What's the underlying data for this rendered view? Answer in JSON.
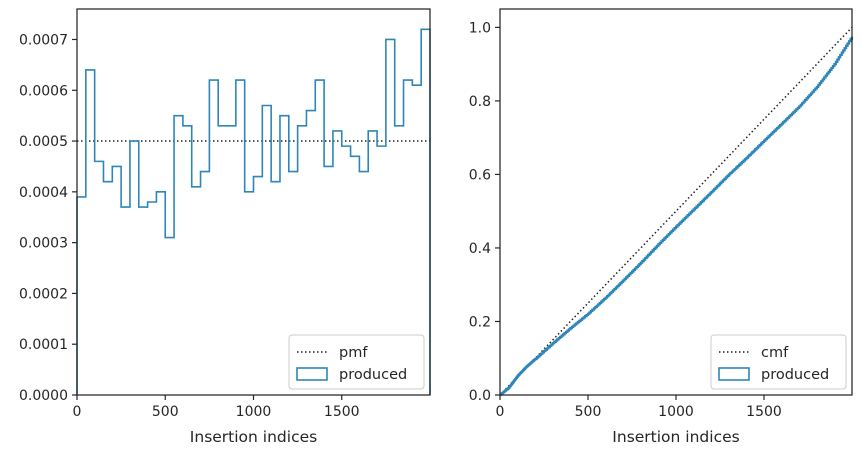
{
  "colors": {
    "series": "#2e86b8",
    "reference": "#222222",
    "axes": "#262626",
    "legend_frame": "#cccccc"
  },
  "chart_data": [
    {
      "type": "step",
      "xlabel": "Insertion indices",
      "ylabel": "",
      "xlim": [
        0,
        2000
      ],
      "ylim": [
        0,
        0.00076
      ],
      "xticks": [
        0,
        500,
        1000,
        1500
      ],
      "xtick_labels": [
        "0",
        "500",
        "1000",
        "1500"
      ],
      "yticks": [
        0,
        0.0001,
        0.0002,
        0.0003,
        0.0004,
        0.0005,
        0.0006,
        0.0007
      ],
      "ytick_labels": [
        "0.0000",
        "0.0001",
        "0.0002",
        "0.0003",
        "0.0004",
        "0.0005",
        "0.0006",
        "0.0007"
      ],
      "legend_position": "lower-right",
      "legend": [
        "pmf",
        "produced"
      ],
      "reference_line": {
        "name": "pmf",
        "value": 0.0005,
        "style": "dotted"
      },
      "bin_width": 50,
      "bin_start": 0,
      "series": [
        {
          "name": "produced",
          "values": [
            0.00039,
            0.00064,
            0.00046,
            0.00042,
            0.00045,
            0.00037,
            0.0005,
            0.00037,
            0.00038,
            0.0004,
            0.00031,
            0.00055,
            0.00053,
            0.00041,
            0.00044,
            0.00062,
            0.00053,
            0.00053,
            0.00062,
            0.0004,
            0.00043,
            0.00057,
            0.00042,
            0.00055,
            0.00044,
            0.00053,
            0.00056,
            0.00062,
            0.00045,
            0.00052,
            0.00049,
            0.00047,
            0.00044,
            0.00052,
            0.00049,
            0.0007,
            0.00053,
            0.00062,
            0.00061,
            0.00072
          ]
        }
      ]
    },
    {
      "type": "line",
      "xlabel": "Insertion indices",
      "ylabel": "",
      "xlim": [
        0,
        2000
      ],
      "ylim": [
        0,
        1.05
      ],
      "xticks": [
        0,
        500,
        1000,
        1500
      ],
      "xtick_labels": [
        "0",
        "500",
        "1000",
        "1500"
      ],
      "yticks": [
        0,
        0.2,
        0.4,
        0.6,
        0.8,
        1.0
      ],
      "ytick_labels": [
        "0.0",
        "0.2",
        "0.4",
        "0.6",
        "0.8",
        "1.0"
      ],
      "legend_position": "lower-right",
      "legend": [
        "cmf",
        "produced"
      ],
      "reference_line": {
        "name": "cmf",
        "x": [
          0,
          2000
        ],
        "y": [
          0,
          1.0
        ],
        "style": "dotted"
      },
      "series": [
        {
          "name": "produced",
          "x": [
            0,
            50,
            100,
            150,
            200,
            300,
            400,
            500,
            600,
            700,
            800,
            900,
            1000,
            1100,
            1200,
            1300,
            1400,
            1500,
            1600,
            1700,
            1800,
            1900,
            2000
          ],
          "y": [
            0,
            0.02,
            0.052,
            0.077,
            0.098,
            0.141,
            0.182,
            0.221,
            0.265,
            0.312,
            0.36,
            0.41,
            0.458,
            0.505,
            0.552,
            0.6,
            0.645,
            0.692,
            0.738,
            0.785,
            0.838,
            0.9,
            0.975
          ]
        }
      ]
    }
  ]
}
